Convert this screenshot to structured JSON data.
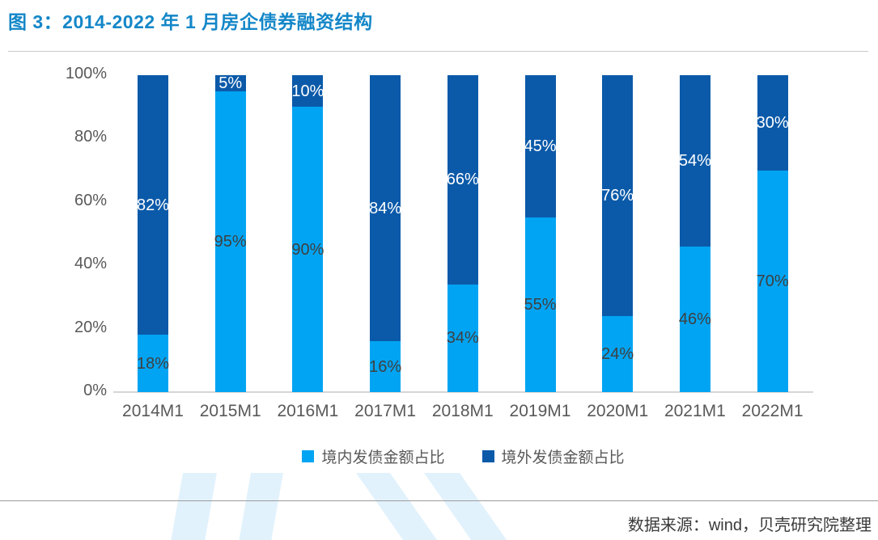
{
  "title": "图 3：2014-2022 年 1 月房企债券融资结构",
  "source_note": "数据来源：wind，贝壳研究院整理",
  "colors": {
    "title_blue": "#1487c8",
    "domestic_blue": "#00a4f3",
    "overseas_blue": "#0b5aa9",
    "axis_text_gray": "#595959",
    "label_on_light": "#404040",
    "label_on_dark": "#ffffff",
    "watermark_blue": "#e2f2fc"
  },
  "chart_data": {
    "type": "bar",
    "stacked": true,
    "percent_stacked": true,
    "title": "2014-2022 年 1 月房企债券融资结构",
    "categories": [
      "2014M1",
      "2015M1",
      "2016M1",
      "2017M1",
      "2018M1",
      "2019M1",
      "2020M1",
      "2021M1",
      "2022M1"
    ],
    "series": [
      {
        "name": "境内发债金额占比",
        "color": "#00a4f3",
        "label_color": "#404040",
        "values": [
          18,
          95,
          90,
          16,
          34,
          55,
          24,
          46,
          70
        ]
      },
      {
        "name": "境外发债金额占比",
        "color": "#0b5aa9",
        "label_color": "#ffffff",
        "values": [
          82,
          5,
          10,
          84,
          66,
          45,
          76,
          54,
          30
        ]
      }
    ],
    "data_label_format": "{value}%",
    "y_ticks": [
      "0%",
      "20%",
      "40%",
      "60%",
      "80%",
      "100%"
    ],
    "ylim": [
      0,
      100
    ],
    "xlabel": "",
    "ylabel": "",
    "grid": false,
    "legend_position": "bottom"
  },
  "legend": {
    "items": [
      {
        "label": "境内发债金额占比",
        "color": "#00a4f3"
      },
      {
        "label": "境外发债金额占比",
        "color": "#0b5aa9"
      }
    ]
  }
}
